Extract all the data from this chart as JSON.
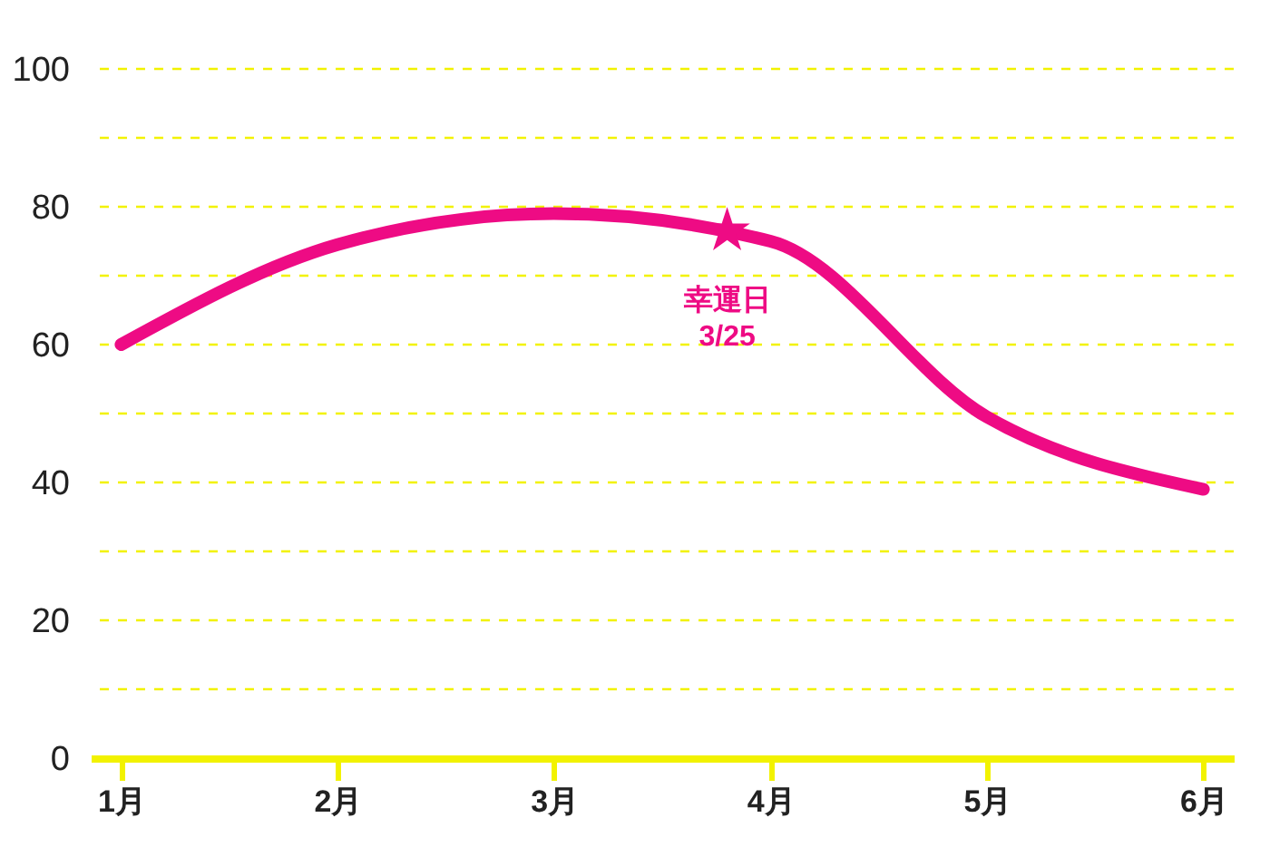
{
  "chart_data": {
    "type": "line",
    "x": [
      1,
      2,
      3,
      4,
      5,
      6
    ],
    "xlim": [
      0.86,
      6.14
    ],
    "xticks": [
      {
        "value": 1,
        "label": "1月"
      },
      {
        "value": 2,
        "label": "2月"
      },
      {
        "value": 3,
        "label": "3月"
      },
      {
        "value": 4,
        "label": "4月"
      },
      {
        "value": 5,
        "label": "5月"
      },
      {
        "value": 6,
        "label": "6月"
      }
    ],
    "ylim": [
      0,
      100
    ],
    "yticks": [
      0,
      {
        "value": 10,
        "label": null
      },
      20,
      {
        "value": 30,
        "label": null
      },
      40,
      {
        "value": 50,
        "label": null
      },
      60,
      {
        "value": 70,
        "label": null
      },
      80,
      {
        "value": 90,
        "label": null
      },
      100
    ],
    "grid": "y",
    "series": [
      {
        "color": "#ee0b84",
        "values": [
          60,
          74.5,
          79,
          75,
          49.5,
          39
        ]
      },
      {
        "type": "scatter",
        "marker": "star",
        "color": "#ee0b84",
        "x": [
          3.8
        ],
        "values": [
          76.5
        ]
      }
    ],
    "annotations": [
      {
        "text": "幸運日\n3/25",
        "x": 3.8,
        "y": 76.5
      }
    ]
  }
}
